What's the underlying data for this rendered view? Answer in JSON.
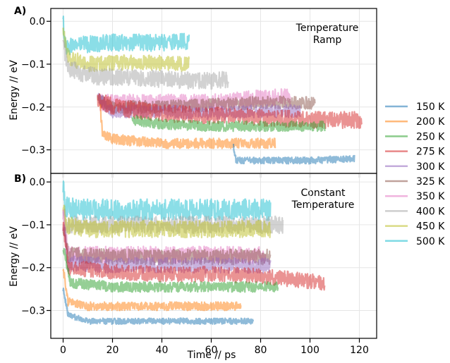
{
  "chart_data": {
    "type": "line",
    "xlabel": "Time  //  ps",
    "xlim": [
      -5,
      127
    ],
    "xticks": [
      0,
      20,
      40,
      60,
      80,
      100,
      120
    ],
    "legend": {
      "placement": "right",
      "entries": [
        {
          "label": "150 K",
          "color": "#1f77b4"
        },
        {
          "label": "200 K",
          "color": "#ff7f0e"
        },
        {
          "label": "250 K",
          "color": "#2ca02c"
        },
        {
          "label": "275 K",
          "color": "#d62728"
        },
        {
          "label": "300 K",
          "color": "#9467bd"
        },
        {
          "label": "325 K",
          "color": "#8c564b"
        },
        {
          "label": "350 K",
          "color": "#e377c2"
        },
        {
          "label": "400 K",
          "color": "#a6a6a6"
        },
        {
          "label": "450 K",
          "color": "#bcbd22"
        },
        {
          "label": "500 K",
          "color": "#17becf"
        }
      ]
    },
    "panels": [
      {
        "label": "A)",
        "annotation": [
          "Temperature",
          "Ramp"
        ],
        "ylabel": "Energy  //  eV",
        "ylim": [
          -0.355,
          0.03
        ],
        "yticks": [
          0.0,
          -0.1,
          -0.2,
          -0.3
        ],
        "yticklabels": [
          "0.0",
          "−0.1",
          "−0.2",
          "−0.3"
        ],
        "grid": true,
        "series": [
          {
            "color": "#17becf",
            "x": [
              0,
              1,
              5,
              20,
              40,
              51
            ],
            "y": [
              0.0,
              -0.06,
              -0.055,
              -0.05,
              -0.05,
              -0.045
            ],
            "noise": 0.02
          },
          {
            "color": "#bcbd22",
            "x": [
              0,
              2,
              10,
              30,
              51
            ],
            "y": [
              -0.02,
              -0.085,
              -0.1,
              -0.095,
              -0.1
            ],
            "noise": 0.018
          },
          {
            "color": "#a6a6a6",
            "x": [
              0,
              2,
              10,
              14,
              20,
              40,
              60,
              67
            ],
            "y": [
              -0.05,
              -0.11,
              -0.125,
              -0.13,
              -0.13,
              -0.135,
              -0.14,
              -0.135
            ],
            "noise": 0.02
          },
          {
            "color": "#e377c2",
            "x": [
              15,
              20,
              40,
              60,
              80,
              92
            ],
            "y": [
              -0.19,
              -0.19,
              -0.19,
              -0.19,
              -0.18,
              -0.175
            ],
            "noise": 0.02
          },
          {
            "color": "#8c564b",
            "x": [
              14,
              20,
              40,
              60,
              80,
              100,
              102
            ],
            "y": [
              -0.18,
              -0.2,
              -0.2,
              -0.195,
              -0.19,
              -0.19,
              -0.19
            ],
            "noise": 0.015
          },
          {
            "color": "#9467bd",
            "x": [
              14,
              20,
              40,
              60,
              80,
              96
            ],
            "y": [
              -0.18,
              -0.21,
              -0.21,
              -0.215,
              -0.21,
              -0.21
            ],
            "noise": 0.015
          },
          {
            "color": "#d62728",
            "x": [
              14,
              20,
              40,
              60,
              80,
              100,
              121
            ],
            "y": [
              -0.18,
              -0.2,
              -0.215,
              -0.22,
              -0.225,
              -0.23,
              -0.23
            ],
            "noise": 0.02
          },
          {
            "color": "#2ca02c",
            "x": [
              28,
              40,
              60,
              80,
              100,
              106
            ],
            "y": [
              -0.23,
              -0.24,
              -0.245,
              -0.245,
              -0.245,
              -0.245
            ],
            "noise": 0.012
          },
          {
            "color": "#ff7f0e",
            "x": [
              15,
              16,
              20,
              40,
              60,
              80,
              86
            ],
            "y": [
              -0.2,
              -0.265,
              -0.275,
              -0.285,
              -0.285,
              -0.285,
              -0.285
            ],
            "noise": 0.012
          },
          {
            "color": "#1f77b4",
            "x": [
              69,
              70,
              80,
              100,
              118
            ],
            "y": [
              -0.29,
              -0.325,
              -0.325,
              -0.325,
              -0.32
            ],
            "noise": 0.008
          }
        ]
      },
      {
        "label": "B)",
        "annotation": [
          "Constant",
          "Temperature"
        ],
        "ylabel": "Energy  //  eV",
        "ylim": [
          -0.365,
          0.02
        ],
        "yticks": [
          0.0,
          -0.1,
          -0.2,
          -0.3
        ],
        "yticklabels": [
          "0.0",
          "−0.1",
          "−0.2",
          "−0.3"
        ],
        "grid": true,
        "series": [
          {
            "color": "#17becf",
            "x": [
              0,
              1,
              10,
              40,
              60,
              84
            ],
            "y": [
              0.0,
              -0.06,
              -0.065,
              -0.065,
              -0.065,
              -0.065
            ],
            "noise": 0.025
          },
          {
            "color": "#a6a6a6",
            "x": [
              0,
              1,
              10,
              40,
              60,
              80,
              89
            ],
            "y": [
              -0.05,
              -0.1,
              -0.1,
              -0.1,
              -0.1,
              -0.1,
              -0.1
            ],
            "noise": 0.02
          },
          {
            "color": "#bcbd22",
            "x": [
              0,
              1,
              10,
              40,
              60,
              84
            ],
            "y": [
              -0.05,
              -0.1,
              -0.11,
              -0.11,
              -0.11,
              -0.11
            ],
            "noise": 0.02
          },
          {
            "color": "#e377c2",
            "x": [
              0,
              2,
              20,
              40,
              60,
              82
            ],
            "y": [
              -0.07,
              -0.17,
              -0.17,
              -0.17,
              -0.17,
              -0.17
            ],
            "noise": 0.02
          },
          {
            "color": "#8c564b",
            "x": [
              0,
              2,
              20,
              40,
              60,
              84
            ],
            "y": [
              -0.1,
              -0.17,
              -0.175,
              -0.175,
              -0.175,
              -0.175
            ],
            "noise": 0.018
          },
          {
            "color": "#9467bd",
            "x": [
              0,
              2,
              20,
              40,
              60,
              84
            ],
            "y": [
              -0.1,
              -0.19,
              -0.195,
              -0.195,
              -0.195,
              -0.195
            ],
            "noise": 0.018
          },
          {
            "color": "#d62728",
            "x": [
              0,
              2,
              20,
              40,
              60,
              80,
              106
            ],
            "y": [
              -0.1,
              -0.2,
              -0.21,
              -0.215,
              -0.215,
              -0.22,
              -0.235
            ],
            "noise": 0.018
          },
          {
            "color": "#2ca02c",
            "x": [
              0,
              3,
              20,
              40,
              60,
              87
            ],
            "y": [
              -0.15,
              -0.235,
              -0.245,
              -0.245,
              -0.245,
              -0.245
            ],
            "noise": 0.012
          },
          {
            "color": "#ff7f0e",
            "x": [
              0,
              2,
              10,
              40,
              60,
              72
            ],
            "y": [
              -0.2,
              -0.28,
              -0.29,
              -0.29,
              -0.29,
              -0.29
            ],
            "noise": 0.01
          },
          {
            "color": "#1f77b4",
            "x": [
              0,
              2,
              10,
              40,
              60,
              77
            ],
            "y": [
              -0.25,
              -0.31,
              -0.325,
              -0.325,
              -0.325,
              -0.325
            ],
            "noise": 0.007
          }
        ]
      }
    ]
  }
}
